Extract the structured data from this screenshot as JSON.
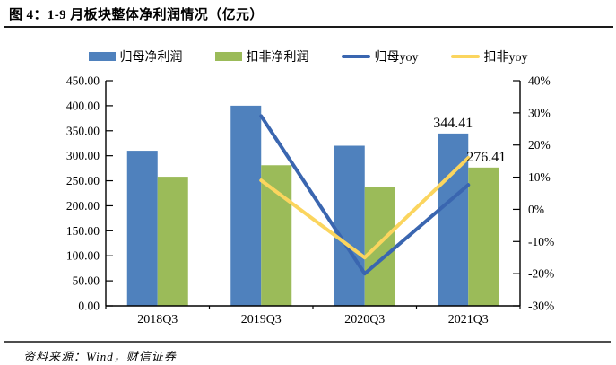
{
  "figure": {
    "title": "图 4：1-9 月板块整体净利润情况（亿元）",
    "source": "资料来源：Wind，财信证券"
  },
  "legend": {
    "items": [
      {
        "label": "归母净利润",
        "type": "bar",
        "color": "#4F81BD"
      },
      {
        "label": "扣非净利润",
        "type": "bar",
        "color": "#9BBB59"
      },
      {
        "label": "归母yoy",
        "type": "line",
        "color": "#3A66B0"
      },
      {
        "label": "扣非yoy",
        "type": "line",
        "color": "#FBD55E"
      }
    ]
  },
  "chart_data": {
    "type": "bar",
    "subtype": "bar-line-combo",
    "title": "1-9月板块整体净利润情况（亿元）",
    "categories": [
      "2018Q3",
      "2019Q3",
      "2020Q3",
      "2021Q3"
    ],
    "bar_series": [
      {
        "name": "归母净利润",
        "axis": "left",
        "color": "#4F81BD",
        "values": [
          310,
          400,
          320,
          344.41
        ],
        "labels": [
          null,
          null,
          null,
          "344.41"
        ]
      },
      {
        "name": "扣非净利润",
        "axis": "left",
        "color": "#9BBB59",
        "values": [
          258,
          281,
          238,
          276.41
        ],
        "labels": [
          null,
          null,
          null,
          "276.41"
        ]
      }
    ],
    "line_series": [
      {
        "name": "归母yoy",
        "axis": "right",
        "color": "#3A66B0",
        "values": [
          null,
          29,
          -20,
          7.6
        ]
      },
      {
        "name": "扣非yoy",
        "axis": "right",
        "color": "#FBD55E",
        "values": [
          null,
          9,
          -15,
          16
        ]
      }
    ],
    "left_axis": {
      "min": 0,
      "max": 450,
      "step": 50,
      "decimals": 2,
      "tick_labels": [
        "0.00",
        "50.00",
        "100.00",
        "150.00",
        "200.00",
        "250.00",
        "300.00",
        "350.00",
        "400.00",
        "450.00"
      ]
    },
    "right_axis": {
      "min": -30,
      "max": 40,
      "step": 10,
      "suffix": "%",
      "tick_labels": [
        "-30%",
        "-20%",
        "-10%",
        "0%",
        "10%",
        "20%",
        "30%",
        "40%"
      ]
    },
    "grid": false,
    "legend_position": "top"
  }
}
